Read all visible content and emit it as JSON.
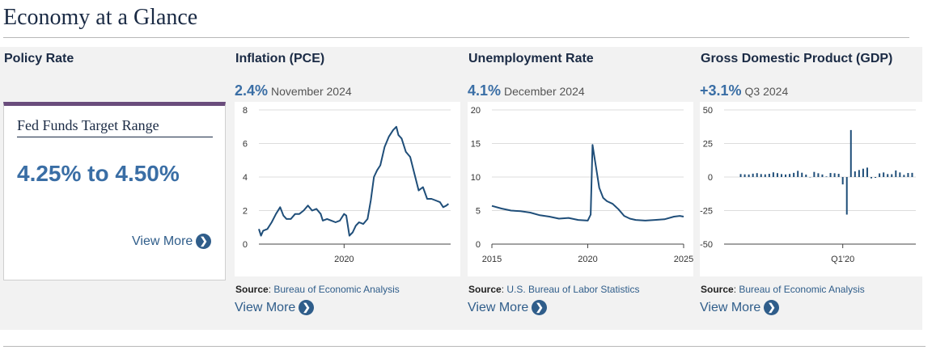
{
  "page": {
    "title": "Economy at a Glance"
  },
  "policy": {
    "heading": "Policy Rate",
    "card_title": "Fed Funds Target Range",
    "value": "4.25% to 4.50%",
    "view_more": "View More"
  },
  "inflation": {
    "heading": "Inflation (PCE)",
    "value": "2.4%",
    "date": "November 2024",
    "source_label": "Source",
    "source": "Bureau of Economic Analysis",
    "view_more": "View More"
  },
  "unemployment": {
    "heading": "Unemployment Rate",
    "value": "4.1%",
    "date": "December 2024",
    "source_label": "Source",
    "source": "U.S. Bureau of Labor Statistics",
    "view_more": "View More"
  },
  "gdp": {
    "heading": "Gross Domestic Product (GDP)",
    "value": "+3.1%",
    "date": "Q3 2024",
    "source_label": "Source",
    "source": "Bureau of Economic Analysis",
    "view_more": "View More"
  },
  "colors": {
    "line": "#1f4e79",
    "accent_bar": "#6a4c7c",
    "link": "#2f5d8a"
  },
  "chart_data": [
    {
      "id": "inflation",
      "type": "line",
      "title": "Inflation (PCE)",
      "xlim": [
        2016.0,
        2025.0
      ],
      "ylim": [
        0,
        8
      ],
      "yticks": [
        0,
        2,
        4,
        6,
        8
      ],
      "xticks": [
        2020
      ],
      "xtick_labels": [
        "2020"
      ],
      "series": [
        {
          "name": "PCE inflation",
          "x": [
            2016.0,
            2016.1,
            2016.2,
            2016.4,
            2016.6,
            2016.8,
            2017.0,
            2017.15,
            2017.3,
            2017.5,
            2017.7,
            2017.9,
            2018.1,
            2018.3,
            2018.5,
            2018.7,
            2018.9,
            2019.0,
            2019.2,
            2019.4,
            2019.6,
            2019.8,
            2020.0,
            2020.1,
            2020.25,
            2020.4,
            2020.55,
            2020.7,
            2020.9,
            2021.1,
            2021.25,
            2021.4,
            2021.55,
            2021.7,
            2021.9,
            2022.1,
            2022.3,
            2022.45,
            2022.55,
            2022.7,
            2022.9,
            2023.1,
            2023.3,
            2023.5,
            2023.7,
            2023.9,
            2024.1,
            2024.3,
            2024.5,
            2024.65,
            2024.8,
            2024.9
          ],
          "y": [
            0.9,
            0.5,
            0.8,
            0.9,
            1.3,
            1.8,
            2.2,
            1.7,
            1.5,
            1.5,
            1.8,
            1.8,
            2.0,
            2.3,
            2.0,
            2.1,
            1.8,
            1.4,
            1.5,
            1.4,
            1.3,
            1.4,
            1.8,
            1.7,
            0.5,
            0.7,
            1.1,
            1.3,
            1.2,
            1.5,
            2.6,
            4.0,
            4.4,
            4.7,
            5.8,
            6.4,
            6.8,
            7.0,
            6.5,
            6.3,
            5.5,
            5.2,
            4.2,
            3.2,
            3.4,
            2.7,
            2.7,
            2.6,
            2.5,
            2.2,
            2.3,
            2.4
          ]
        }
      ]
    },
    {
      "id": "unemployment",
      "type": "line",
      "title": "Unemployment Rate",
      "xlim": [
        2015.0,
        2025.0
      ],
      "ylim": [
        0,
        20
      ],
      "yticks": [
        0,
        5,
        10,
        15,
        20
      ],
      "xticks": [
        2015,
        2020,
        2025
      ],
      "xtick_labels": [
        "2015",
        "2020",
        "2025"
      ],
      "series": [
        {
          "name": "Unemployment rate",
          "x": [
            2015.0,
            2015.5,
            2016.0,
            2016.5,
            2017.0,
            2017.5,
            2018.0,
            2018.5,
            2019.0,
            2019.5,
            2020.0,
            2020.15,
            2020.25,
            2020.33,
            2020.45,
            2020.6,
            2020.8,
            2021.0,
            2021.3,
            2021.6,
            2021.9,
            2022.2,
            2022.5,
            2023.0,
            2023.5,
            2024.0,
            2024.5,
            2024.8,
            2025.0
          ],
          "y": [
            5.7,
            5.3,
            5.0,
            4.9,
            4.7,
            4.3,
            4.1,
            3.8,
            3.9,
            3.6,
            3.5,
            4.4,
            14.8,
            13.3,
            11.1,
            8.4,
            6.9,
            6.4,
            6.0,
            5.2,
            4.2,
            3.8,
            3.6,
            3.5,
            3.6,
            3.7,
            4.1,
            4.2,
            4.1
          ]
        }
      ]
    },
    {
      "id": "gdp",
      "type": "bar",
      "title": "Gross Domestic Product (GDP)",
      "ylim": [
        -50,
        50
      ],
      "yticks": [
        -50,
        -25,
        0,
        25,
        50
      ],
      "xtick_labels": [
        "Q1'20"
      ],
      "xtick_index": 25,
      "values": [
        2.2,
        2.0,
        1.9,
        2.5,
        2.9,
        2.2,
        2.0,
        2.4,
        3.5,
        2.9,
        2.2,
        1.9,
        2.3,
        3.1,
        4.6,
        3.2,
        1.8,
        0.0,
        3.8,
        2.8,
        1.9,
        0.4,
        3.0,
        2.8,
        2.4,
        -5.5,
        -28.0,
        35.0,
        4.2,
        5.2,
        6.2,
        7.0,
        -1.0,
        -0.6,
        2.7,
        3.4,
        2.2,
        2.1,
        4.9,
        3.4,
        1.6,
        3.0,
        3.1
      ]
    }
  ]
}
